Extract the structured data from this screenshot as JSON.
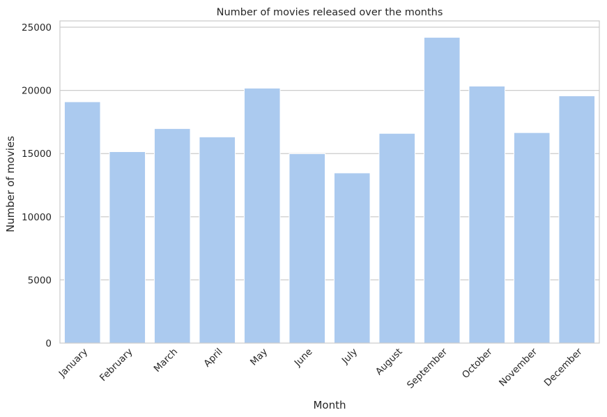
{
  "chart_data": {
    "type": "bar",
    "title": "Number of movies released over the months",
    "xlabel": "Month",
    "ylabel": "Number of movies",
    "categories": [
      "January",
      "February",
      "March",
      "April",
      "May",
      "June",
      "July",
      "August",
      "September",
      "October",
      "November",
      "December"
    ],
    "values": [
      19100,
      15150,
      16980,
      16320,
      20180,
      14990,
      13470,
      16600,
      24200,
      20340,
      16660,
      19570
    ],
    "ylim": [
      0,
      25500
    ],
    "yticks": [
      0,
      5000,
      10000,
      15000,
      20000,
      25000
    ],
    "ytick_labels": [
      "0",
      "5000",
      "10000",
      "15000",
      "20000",
      "25000"
    ],
    "grid": "horizontal",
    "bar_color": "#abcaef",
    "grid_color": "#cccccc",
    "background": "#ffffff"
  }
}
